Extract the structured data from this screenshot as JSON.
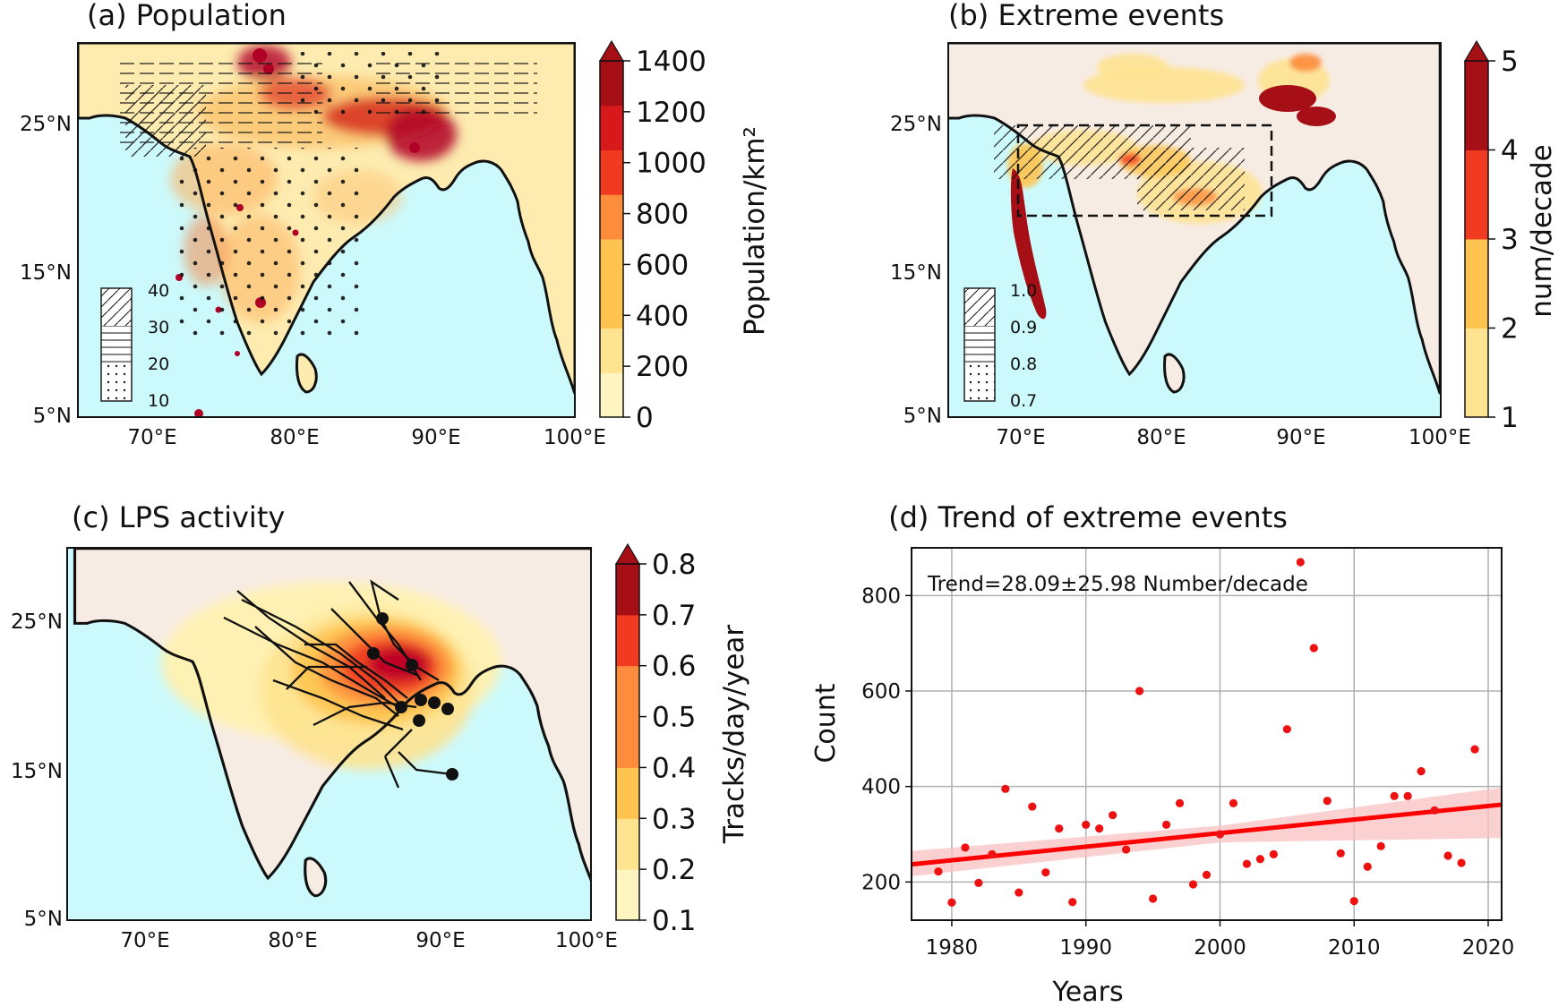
{
  "panels": {
    "a": {
      "title": "(a) Population",
      "cbar_label": "Population/km²",
      "cbar_ticks": [
        "0",
        "200",
        "400",
        "600",
        "800",
        "1000",
        "1200",
        "1400"
      ],
      "legend_ticks": [
        "40",
        "30",
        "20",
        "10"
      ],
      "lat_ticks": [
        "25°N",
        "15°N",
        "5°N"
      ],
      "lon_ticks": [
        "70°E",
        "80°E",
        "90°E",
        "100°E"
      ]
    },
    "b": {
      "title": "(b) Extreme events",
      "cbar_label": "num/decade",
      "cbar_ticks": [
        "1",
        "2",
        "3",
        "4",
        "5"
      ],
      "legend_ticks": [
        "1.0",
        "0.9",
        "0.8",
        "0.7"
      ],
      "lat_ticks": [
        "25°N",
        "15°N",
        "5°N"
      ],
      "lon_ticks": [
        "70°E",
        "80°E",
        "90°E",
        "100°E"
      ]
    },
    "c": {
      "title": "(c) LPS activity",
      "cbar_label": "Tracks/day/year",
      "cbar_ticks": [
        "0.1",
        "0.2",
        "0.3",
        "0.4",
        "0.5",
        "0.6",
        "0.7",
        "0.8"
      ],
      "lat_ticks": [
        "25°N",
        "15°N",
        "5°N"
      ],
      "lon_ticks": [
        "70°E",
        "80°E",
        "90°E",
        "100°E"
      ]
    },
    "d": {
      "title": "(d) Trend of extreme events",
      "annotation": "Trend=28.09±25.98 Number/decade"
    }
  },
  "colors": {
    "ocean": "#ccfafc",
    "land": "#f7ece4",
    "trend_line": "#ff0000",
    "points": "#ee1111",
    "ci_band": "#f9c0c0",
    "ylorrd": [
      "#fff5c0",
      "#fee391",
      "#fec44f",
      "#fd8d3c",
      "#f03b20",
      "#d7191c",
      "#a50f15",
      "#67000d"
    ]
  },
  "chart_data": {
    "type": "scatter",
    "title": "(d) Trend of extreme events",
    "xlabel": "Years",
    "ylabel": "Count",
    "xlim": [
      1977,
      2021
    ],
    "ylim": [
      120,
      900
    ],
    "xticks": [
      1980,
      1990,
      2000,
      2010,
      2020
    ],
    "yticks": [
      200,
      400,
      600,
      800
    ],
    "grid": true,
    "x": [
      1979,
      1980,
      1981,
      1982,
      1983,
      1984,
      1985,
      1986,
      1987,
      1988,
      1989,
      1990,
      1991,
      1992,
      1993,
      1994,
      1995,
      1996,
      1997,
      1998,
      1999,
      2000,
      2001,
      2002,
      2003,
      2004,
      2005,
      2006,
      2007,
      2008,
      2009,
      2010,
      2011,
      2012,
      2013,
      2014,
      2015,
      2016,
      2017,
      2018,
      2019
    ],
    "y": [
      222,
      157,
      272,
      198,
      258,
      395,
      178,
      358,
      220,
      312,
      158,
      320,
      312,
      340,
      268,
      600,
      165,
      320,
      365,
      195,
      215,
      300,
      365,
      238,
      248,
      258,
      520,
      870,
      690,
      370,
      260,
      160,
      232,
      275,
      380,
      380,
      432,
      350,
      255,
      240,
      478
    ],
    "trend": {
      "x": [
        1977,
        2021
      ],
      "y": [
        237,
        362
      ]
    },
    "ci_band": {
      "x": [
        1977,
        2000,
        2021
      ],
      "upper": [
        265,
        318,
        398
      ],
      "lower": [
        212,
        283,
        292
      ]
    }
  }
}
